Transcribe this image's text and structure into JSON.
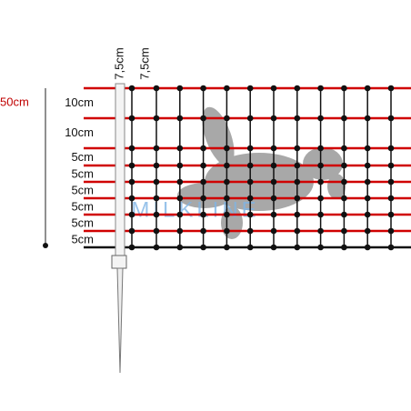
{
  "total_height": "50cm",
  "post_spacings": [
    "7,5cm",
    "7,5cm"
  ],
  "row_spacings": [
    "10cm",
    "10cm",
    "5cm",
    "5cm",
    "5cm",
    "5cm",
    "5cm",
    "5cm"
  ],
  "watermark": "MILKLINE"
}
